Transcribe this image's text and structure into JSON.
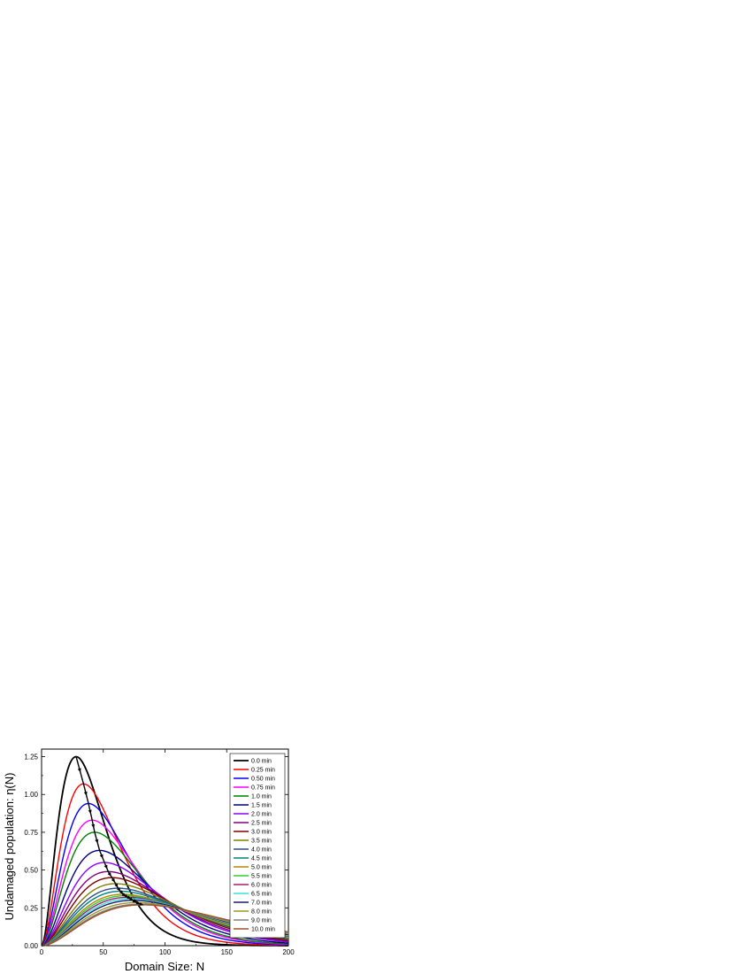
{
  "chart_data": {
    "type": "line",
    "xlabel": "Domain Size: N",
    "ylabel": "Undamaged population: η(N)",
    "xlim": [
      0,
      200
    ],
    "ylim": [
      0,
      1.3
    ],
    "x_ticks": [
      0,
      50,
      100,
      150,
      200
    ],
    "y_ticks": [
      0.0,
      0.25,
      0.5,
      0.75,
      1.0,
      1.25
    ],
    "x_tick_labels": [
      "0",
      "50",
      "100",
      "150",
      "200"
    ],
    "y_tick_labels": [
      "0.00",
      "0.25",
      "0.50",
      "0.75",
      "1.00",
      "1.25"
    ],
    "legend_position": "top-right",
    "curve_shape_k": 2,
    "series": [
      {
        "name": "0.0 min",
        "color": "#000000",
        "peak_x": 28,
        "peak_y": 1.25
      },
      {
        "name": "0.25 min",
        "color": "#ff0000",
        "peak_x": 34,
        "peak_y": 1.07
      },
      {
        "name": "0.50 min",
        "color": "#0000ff",
        "peak_x": 38,
        "peak_y": 0.94
      },
      {
        "name": "0.75 min",
        "color": "#ff00ff",
        "peak_x": 41,
        "peak_y": 0.83
      },
      {
        "name": "1.0 min",
        "color": "#008000",
        "peak_x": 43,
        "peak_y": 0.75
      },
      {
        "name": "1.5 min",
        "color": "#000080",
        "peak_x": 47,
        "peak_y": 0.63
      },
      {
        "name": "2.0 min",
        "color": "#8b00ff",
        "peak_x": 51,
        "peak_y": 0.55
      },
      {
        "name": "2.5 min",
        "color": "#800080",
        "peak_x": 54,
        "peak_y": 0.49
      },
      {
        "name": "3.0 min",
        "color": "#800000",
        "peak_x": 57,
        "peak_y": 0.45
      },
      {
        "name": "3.5 min",
        "color": "#808000",
        "peak_x": 60,
        "peak_y": 0.41
      },
      {
        "name": "4.0 min",
        "color": "#2f4f8f",
        "peak_x": 62,
        "peak_y": 0.38
      },
      {
        "name": "4.5 min",
        "color": "#008080",
        "peak_x": 64,
        "peak_y": 0.36
      },
      {
        "name": "5.0 min",
        "color": "#b8860b",
        "peak_x": 66,
        "peak_y": 0.34
      },
      {
        "name": "5.5 min",
        "color": "#32cd32",
        "peak_x": 68,
        "peak_y": 0.33
      },
      {
        "name": "6.0 min",
        "color": "#a0207a",
        "peak_x": 70,
        "peak_y": 0.32
      },
      {
        "name": "6.5 min",
        "color": "#40e0d0",
        "peak_x": 72,
        "peak_y": 0.31
      },
      {
        "name": "7.0 min",
        "color": "#191970",
        "peak_x": 74,
        "peak_y": 0.3
      },
      {
        "name": "8.0 min",
        "color": "#9a9a2a",
        "peak_x": 77,
        "peak_y": 0.285
      },
      {
        "name": "9.0 min",
        "color": "#808080",
        "peak_x": 80,
        "peak_y": 0.275
      },
      {
        "name": "10.0 min",
        "color": "#a0522d",
        "peak_x": 82,
        "peak_y": 0.27
      }
    ],
    "peak_trace": {
      "color": "#000000",
      "x": [
        28,
        34,
        38,
        41,
        43,
        47,
        51,
        54,
        57,
        60,
        62,
        64,
        66,
        68,
        70,
        72,
        74,
        77,
        80,
        82
      ],
      "y": [
        1.25,
        1.07,
        0.94,
        0.83,
        0.75,
        0.63,
        0.55,
        0.49,
        0.45,
        0.41,
        0.38,
        0.36,
        0.34,
        0.33,
        0.32,
        0.31,
        0.3,
        0.285,
        0.275,
        0.27
      ]
    }
  }
}
